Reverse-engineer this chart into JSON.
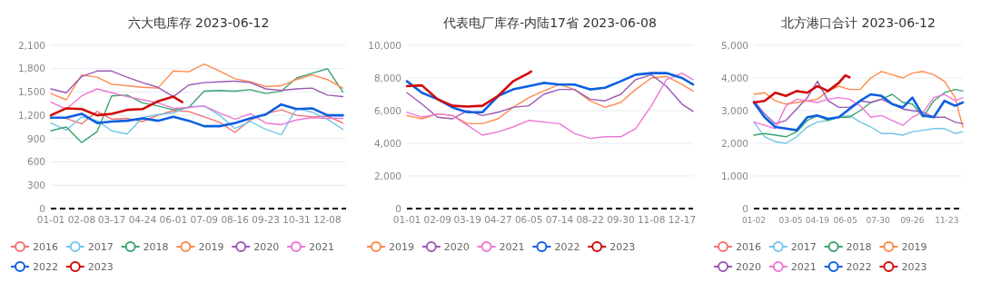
{
  "chart_data": [
    {
      "type": "line",
      "title": "六大电库存 2023-06-12",
      "xlim": [
        "--01-01",
        "--12-31"
      ],
      "xticks": [
        {
          "value": "--01-01",
          "label": "01-01"
        },
        {
          "value": "--02-08",
          "label": "02-08"
        },
        {
          "value": "--03-17",
          "label": "03-17"
        },
        {
          "value": "--04-24",
          "label": "04-24"
        },
        {
          "value": "--06-01",
          "label": "06-01"
        },
        {
          "value": "--07-09",
          "label": "07-09"
        },
        {
          "value": "--08-16",
          "label": "08-16"
        },
        {
          "value": "--09-23",
          "label": "09-23"
        },
        {
          "value": "--10-31",
          "label": "10-31"
        },
        {
          "value": "--12-08",
          "label": "12-08"
        }
      ],
      "ylim": [
        0,
        2100
      ],
      "yticks": [
        {
          "value": 0,
          "label": "0"
        },
        {
          "value": 300,
          "label": "300"
        },
        {
          "value": 600,
          "label": "600"
        },
        {
          "value": 900,
          "label": "900"
        },
        {
          "value": 1200,
          "label": "1,200"
        },
        {
          "value": 1500,
          "label": "1,500"
        },
        {
          "value": 1800,
          "label": "1,800"
        },
        {
          "value": 2100,
          "label": "2,100"
        }
      ],
      "grid": "y",
      "legend": "bottom",
      "ref_lines": [
        {
          "axis": "y",
          "value": 0,
          "color": "#000000",
          "line_style": "dashed"
        }
      ],
      "x": [
        "--01-01",
        "--01-20",
        "--02-08",
        "--02-27",
        "--03-17",
        "--04-05",
        "--04-24",
        "--05-13",
        "--06-01",
        "--06-20",
        "--07-09",
        "--07-28",
        "--08-16",
        "--09-04",
        "--09-23",
        "--10-12",
        "--10-31",
        "--11-19",
        "--12-08",
        "--12-27"
      ],
      "series": [
        {
          "name": "2016",
          "color": "#f4726e",
          "values": [
            1170,
            1160,
            1090,
            1250,
            1150,
            1160,
            1120,
            1200,
            1260,
            1250,
            1180,
            1110,
            980,
            1140,
            1220,
            1270,
            1200,
            1180,
            1190,
            1100
          ]
        },
        {
          "name": "2017",
          "color": "#72c6e8",
          "values": [
            1100,
            1010,
            1180,
            1130,
            1000,
            960,
            1170,
            1210,
            1230,
            1310,
            1320,
            1200,
            1030,
            1120,
            1020,
            950,
            1290,
            1240,
            1150,
            1020
          ]
        },
        {
          "name": "2018",
          "color": "#3aa46e",
          "values": [
            1000,
            1050,
            850,
            990,
            1450,
            1460,
            1360,
            1320,
            1270,
            1300,
            1510,
            1520,
            1510,
            1530,
            1480,
            1510,
            1680,
            1740,
            1800,
            1500
          ]
        },
        {
          "name": "2019",
          "color": "#ff8a4c",
          "values": [
            1480,
            1400,
            1720,
            1690,
            1600,
            1580,
            1560,
            1550,
            1770,
            1760,
            1860,
            1770,
            1670,
            1630,
            1570,
            1580,
            1660,
            1720,
            1660,
            1550
          ]
        },
        {
          "name": "2020",
          "color": "#9b59b6",
          "values": [
            1540,
            1490,
            1700,
            1770,
            1770,
            1690,
            1620,
            1560,
            1440,
            1590,
            1620,
            1630,
            1640,
            1620,
            1540,
            1520,
            1540,
            1550,
            1460,
            1440
          ]
        },
        {
          "name": "2021",
          "color": "#ee77d5",
          "values": [
            1370,
            1280,
            1450,
            1540,
            1490,
            1440,
            1400,
            1360,
            1290,
            1300,
            1320,
            1230,
            1150,
            1220,
            1100,
            1080,
            1140,
            1170,
            1160,
            1160
          ]
        },
        {
          "name": "2022",
          "color": "#0b5fe0",
          "values": [
            1170,
            1170,
            1220,
            1100,
            1120,
            1130,
            1160,
            1130,
            1180,
            1130,
            1060,
            1060,
            1100,
            1160,
            1210,
            1340,
            1280,
            1290,
            1200,
            1200
          ]
        },
        {
          "name": "2023",
          "color": "#d00a0a",
          "x": [
            "--01-01",
            "--01-20",
            "--02-08",
            "--02-27",
            "--03-17",
            "--04-05",
            "--04-24",
            "--05-13",
            "--06-01",
            "--06-12"
          ],
          "values": [
            1200,
            1290,
            1280,
            1200,
            1220,
            1270,
            1280,
            1380,
            1440,
            1370
          ]
        }
      ]
    },
    {
      "type": "line",
      "title": "代表电厂库存-内陆17省 2023-06-08",
      "xlim": [
        "--01-01",
        "--12-31"
      ],
      "xticks": [
        {
          "value": "--01-01",
          "label": "01-01"
        },
        {
          "value": "--02-09",
          "label": "02-09"
        },
        {
          "value": "--03-19",
          "label": "03-19"
        },
        {
          "value": "--04-27",
          "label": "04-27"
        },
        {
          "value": "--06-05",
          "label": "06-05"
        },
        {
          "value": "--07-14",
          "label": "07-14"
        },
        {
          "value": "--08-22",
          "label": "08-22"
        },
        {
          "value": "--09-30",
          "label": "09-30"
        },
        {
          "value": "--11-08",
          "label": "11-08"
        },
        {
          "value": "--12-17",
          "label": "12-17"
        }
      ],
      "ylim": [
        0,
        10000
      ],
      "yticks": [
        {
          "value": 0,
          "label": "0"
        },
        {
          "value": 2000,
          "label": "2,000"
        },
        {
          "value": 4000,
          "label": "4,000"
        },
        {
          "value": 6000,
          "label": "6,000"
        },
        {
          "value": 8000,
          "label": "8,000"
        },
        {
          "value": 10000,
          "label": "10,000"
        }
      ],
      "grid": "y",
      "legend": "bottom",
      "ref_lines": [
        {
          "axis": "y",
          "value": 0,
          "color": "#000000",
          "line_style": "dashed"
        }
      ],
      "x": [
        "--01-01",
        "--01-20",
        "--02-09",
        "--02-28",
        "--03-19",
        "--04-07",
        "--04-27",
        "--05-16",
        "--06-05",
        "--06-24",
        "--07-14",
        "--08-02",
        "--08-22",
        "--09-10",
        "--09-30",
        "--10-19",
        "--11-08",
        "--11-27",
        "--12-17",
        "--12-31"
      ],
      "series": [
        {
          "name": "2019",
          "color": "#ff8a4c",
          "values": [
            5700,
            5500,
            5800,
            5700,
            5200,
            5200,
            5500,
            6200,
            6800,
            7200,
            7600,
            7300,
            6600,
            6200,
            6500,
            7300,
            8000,
            8100,
            7600,
            7200
          ]
        },
        {
          "name": "2020",
          "color": "#9b59b6",
          "values": [
            7100,
            6400,
            5600,
            5500,
            6000,
            5700,
            5900,
            6200,
            6300,
            7000,
            7300,
            7300,
            6700,
            6600,
            7000,
            7900,
            8200,
            7500,
            6400,
            5950
          ]
        },
        {
          "name": "2021",
          "color": "#ee77d5",
          "values": [
            5900,
            5600,
            5800,
            5700,
            5100,
            4500,
            4700,
            5000,
            5400,
            5300,
            5200,
            4600,
            4300,
            4400,
            4400,
            4900,
            6300,
            7900,
            8300,
            7900
          ]
        },
        {
          "name": "2022",
          "color": "#0b5fe0",
          "values": [
            7800,
            7100,
            6700,
            6200,
            5900,
            5900,
            6900,
            7300,
            7500,
            7700,
            7600,
            7600,
            7300,
            7400,
            7800,
            8200,
            8300,
            8300,
            8000,
            7600
          ]
        },
        {
          "name": "2023",
          "color": "#d00a0a",
          "x": [
            "--01-01",
            "--01-20",
            "--02-09",
            "--02-28",
            "--03-19",
            "--04-07",
            "--04-27",
            "--05-16",
            "--06-05",
            "--06-08"
          ],
          "values": [
            7500,
            7550,
            6700,
            6300,
            6250,
            6300,
            6900,
            7800,
            8300,
            8400
          ]
        }
      ]
    },
    {
      "type": "line",
      "title": "北方港口合计 2023-06-12",
      "xlim": [
        "--01-02",
        "--12-20"
      ],
      "xticks": [
        {
          "value": "--01-02",
          "label": "01-02"
        },
        {
          "value": "--03-05",
          "label": "03-05"
        },
        {
          "value": "--04-19",
          "label": "04-19"
        },
        {
          "value": "--06-05",
          "label": "06-05"
        },
        {
          "value": "--07-30",
          "label": "07-30"
        },
        {
          "value": "--09-26",
          "label": "09-26"
        },
        {
          "value": "--11-23",
          "label": "11-23"
        }
      ],
      "ylim": [
        0,
        5000
      ],
      "yticks": [
        {
          "value": 0,
          "label": "0"
        },
        {
          "value": 1000,
          "label": "1,000"
        },
        {
          "value": 2000,
          "label": "2,000"
        },
        {
          "value": 3000,
          "label": "3,000"
        },
        {
          "value": 4000,
          "label": "4,000"
        },
        {
          "value": 5000,
          "label": "5,000"
        }
      ],
      "grid": "y",
      "legend": "bottom",
      "ref_lines": [
        {
          "axis": "y",
          "value": 0,
          "color": "#000000",
          "line_style": "dashed"
        }
      ],
      "x": [
        "--01-02",
        "--01-20",
        "--02-07",
        "--02-25",
        "--03-15",
        "--04-02",
        "--04-19",
        "--05-07",
        "--05-25",
        "--06-12",
        "--06-30",
        "--07-18",
        "--08-05",
        "--08-23",
        "--09-10",
        "--09-26",
        "--10-14",
        "--11-01",
        "--11-19",
        "--12-07",
        "--12-20"
      ],
      "series": [
        {
          "name": "2016",
          "color": "#f4726e",
          "values": [
            null,
            null,
            null,
            null,
            null,
            null,
            null,
            null,
            null,
            null,
            null,
            null,
            null,
            null,
            null,
            null,
            null,
            null,
            null,
            null,
            null
          ]
        },
        {
          "name": "2017",
          "color": "#72c6e8",
          "values": [
            2650,
            2200,
            2050,
            2000,
            2200,
            2500,
            2650,
            2700,
            2800,
            2850,
            2650,
            2500,
            2300,
            2300,
            2250,
            2350,
            2400,
            2450,
            2450,
            2300,
            2350
          ]
        },
        {
          "name": "2018",
          "color": "#3aa46e",
          "values": [
            2250,
            2300,
            2250,
            2200,
            2350,
            2700,
            2850,
            2700,
            2800,
            2800,
            3000,
            3250,
            3350,
            3500,
            3250,
            3200,
            2800,
            3300,
            3550,
            3650,
            3600
          ]
        },
        {
          "name": "2019",
          "color": "#ff8a4c",
          "values": [
            3500,
            3550,
            3300,
            3200,
            3250,
            3300,
            3350,
            3600,
            3750,
            3650,
            3650,
            4000,
            4200,
            4100,
            4000,
            4150,
            4200,
            4100,
            3900,
            3400,
            2500
          ]
        },
        {
          "name": "2020",
          "color": "#9b59b6",
          "values": [
            3300,
            2900,
            2600,
            2700,
            3050,
            3400,
            3900,
            3300,
            3100,
            3100,
            3300,
            3250,
            3350,
            3200,
            3050,
            3000,
            2950,
            2800,
            2800,
            2650,
            2600
          ]
        },
        {
          "name": "2021",
          "color": "#ee77d5",
          "values": [
            2650,
            2550,
            2450,
            3150,
            3350,
            3300,
            3250,
            3350,
            3400,
            3350,
            3150,
            2800,
            2850,
            2700,
            2550,
            2800,
            2950,
            3400,
            3500,
            3300,
            3400
          ]
        },
        {
          "name": "2022",
          "color": "#0b5fe0",
          "values": [
            3250,
            2800,
            2500,
            2450,
            2400,
            2800,
            2850,
            2750,
            2800,
            3050,
            3300,
            3500,
            3450,
            3200,
            3100,
            3400,
            2850,
            2800,
            3300,
            3150,
            3250
          ]
        },
        {
          "name": "2023",
          "color": "#d00a0a",
          "x": [
            "--01-02",
            "--01-20",
            "--02-07",
            "--02-25",
            "--03-15",
            "--04-02",
            "--04-19",
            "--05-07",
            "--05-25",
            "--06-05",
            "--06-12"
          ],
          "values": [
            3250,
            3300,
            3550,
            3450,
            3600,
            3550,
            3750,
            3600,
            3850,
            4080,
            4020
          ]
        }
      ]
    }
  ]
}
